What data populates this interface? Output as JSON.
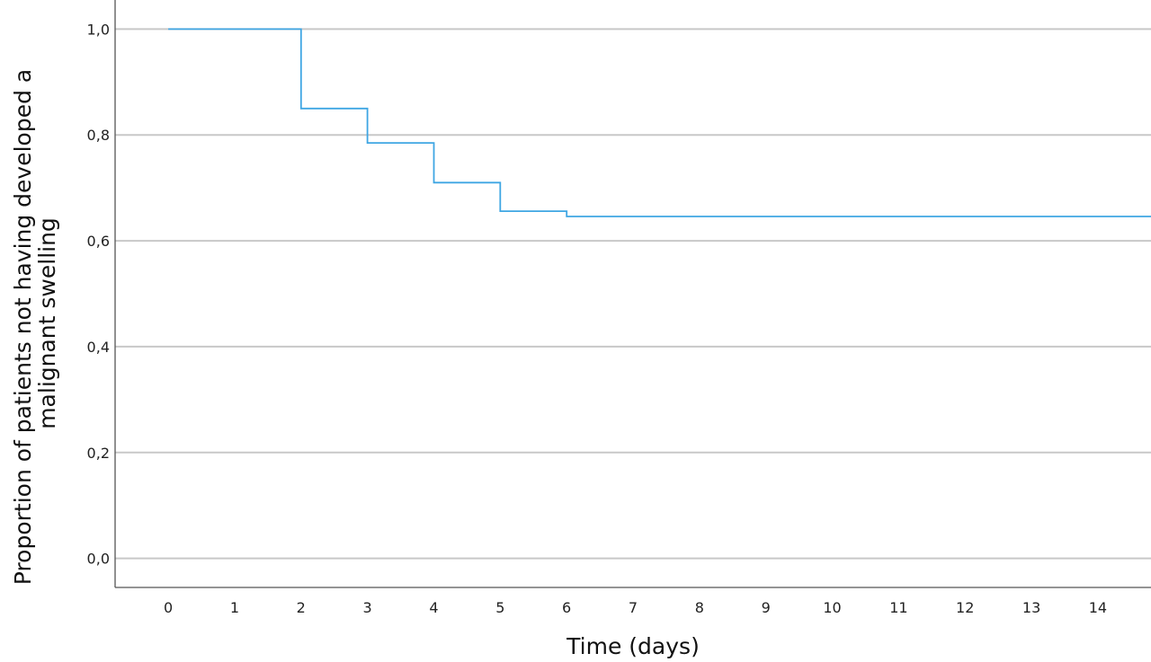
{
  "chart_data": {
    "type": "line",
    "subtype": "step",
    "title": "",
    "xlabel": "Time (days)",
    "ylabel_lines": [
      "Proportion of patients not having developed a",
      "malignant swelling"
    ],
    "x_ticks": [
      "0",
      "1",
      "2",
      "3",
      "4",
      "5",
      "6",
      "7",
      "8",
      "9",
      "10",
      "11",
      "12",
      "13",
      "14"
    ],
    "y_ticks": [
      "0,0",
      "0,2",
      "0,4",
      "0,6",
      "0,8",
      "1,0"
    ],
    "xlim": [
      -0.8,
      14.8
    ],
    "ylim": [
      -0.055,
      1.055
    ],
    "grid": true,
    "series": [
      {
        "color": "#3fa6e3",
        "points": [
          {
            "x": 0,
            "y": 1.0
          },
          {
            "x": 2,
            "y": 0.85
          },
          {
            "x": 3,
            "y": 0.785
          },
          {
            "x": 4,
            "y": 0.71
          },
          {
            "x": 5,
            "y": 0.656
          },
          {
            "x": 6,
            "y": 0.646
          },
          {
            "x": 14.8,
            "y": 0.646
          }
        ]
      }
    ]
  }
}
